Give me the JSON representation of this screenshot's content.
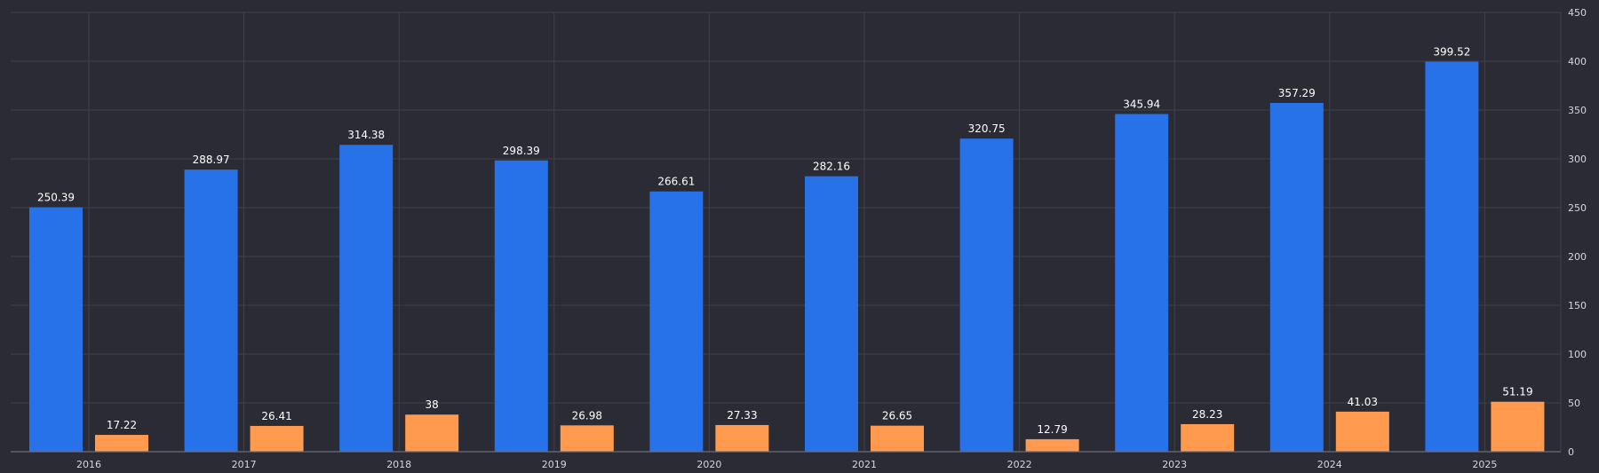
{
  "chart_data": {
    "type": "bar",
    "categories": [
      "2016",
      "2017",
      "2018",
      "2019",
      "2020",
      "2021",
      "2022",
      "2023",
      "2024",
      "2025"
    ],
    "series": [
      {
        "values": [
          250.39,
          288.97,
          314.38,
          298.39,
          266.61,
          282.16,
          320.75,
          345.94,
          357.29,
          399.52
        ],
        "color": "#2771e9"
      },
      {
        "values": [
          17.22,
          26.41,
          38,
          26.98,
          27.33,
          26.65,
          12.79,
          28.23,
          41.03,
          51.19
        ],
        "color": "#ff9a4f"
      }
    ],
    "y_ticks": [
      0,
      50,
      100,
      150,
      200,
      250,
      300,
      350,
      400,
      450
    ],
    "ylim": [
      0,
      450
    ],
    "y_axis_position": "right",
    "grid": true,
    "background": "#2b2b35",
    "title": "",
    "xlabel": "",
    "ylabel": ""
  }
}
